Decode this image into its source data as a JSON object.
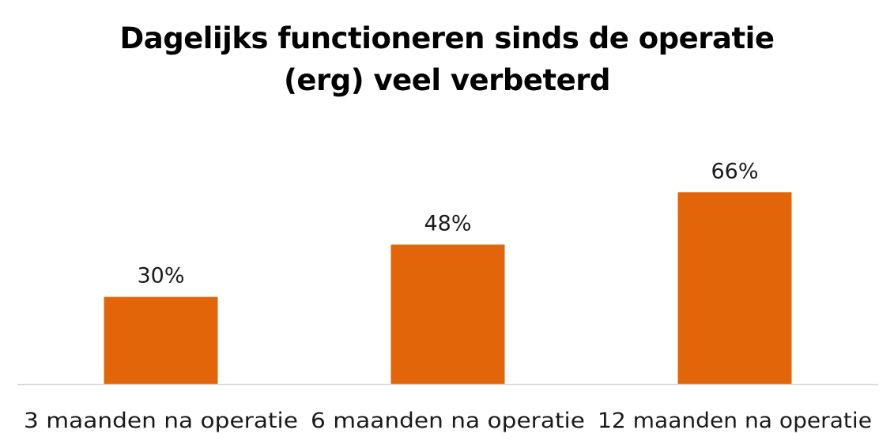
{
  "chart_data": {
    "type": "bar",
    "title_lines": [
      "Dagelijks functioneren sinds de operatie",
      "(erg) veel verbeterd"
    ],
    "categories": [
      "3 maanden na operatie",
      "6 maanden na operatie",
      "12 maanden na operatie"
    ],
    "values": [
      30,
      48,
      66
    ],
    "value_labels": [
      "30%",
      "48%",
      "66%"
    ],
    "unit": "%",
    "ylim": [
      0,
      90
    ],
    "xlabel": "",
    "ylabel": "",
    "grid": false,
    "legend": "none",
    "bar_color": "#E26509",
    "axis_color": "#D9D9D9"
  }
}
